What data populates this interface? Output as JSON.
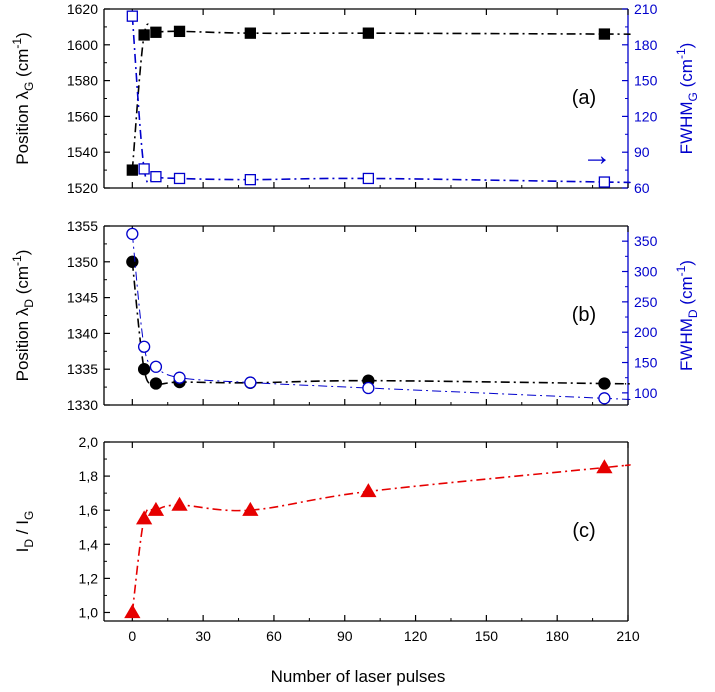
{
  "colors": {
    "black": "#000000",
    "blue": "#0000cc",
    "red": "#e60000"
  },
  "chart_data": [
    {
      "panel": "a",
      "type": "scatter",
      "panel_label": "(a)",
      "xlim": [
        -12,
        210
      ],
      "y_left": {
        "label_main": "Position λ",
        "label_sub": "G",
        "label_unit": " (cm",
        "label_sup": "-1",
        "label_close": ")",
        "lim": [
          1520,
          1620
        ],
        "ticks": [
          "1520",
          "1540",
          "1560",
          "1580",
          "1600",
          "1620"
        ]
      },
      "y_right": {
        "label_main": "FWHM",
        "label_sub": "G",
        "label_unit": " (cm",
        "label_sup": "-1",
        "label_close": ")",
        "lim": [
          60,
          210
        ],
        "ticks": [
          "60",
          "90",
          "120",
          "150",
          "180",
          "210"
        ]
      },
      "annotation": "→",
      "series": [
        {
          "axis": "left",
          "color": "#000000",
          "marker": "filled-square",
          "line": "dash-dot",
          "points": [
            [
              0,
              1530
            ],
            [
              5,
              1605.5
            ],
            [
              10,
              1607
            ],
            [
              20,
              1607.5
            ],
            [
              50,
              1606.5
            ],
            [
              100,
              1606.5
            ],
            [
              200,
              1606
            ]
          ]
        },
        {
          "axis": "right",
          "color": "#0000cc",
          "marker": "open-square",
          "line": "dash-dot",
          "points": [
            [
              0,
              204
            ],
            [
              5,
              76
            ],
            [
              10,
              69.5
            ],
            [
              20,
              68
            ],
            [
              50,
              67
            ],
            [
              100,
              68
            ],
            [
              200,
              65
            ]
          ]
        }
      ]
    },
    {
      "panel": "b",
      "type": "scatter",
      "panel_label": "(b)",
      "xlim": [
        -12,
        210
      ],
      "y_left": {
        "label_main": "Position λ",
        "label_sub": "D",
        "label_unit": " (cm",
        "label_sup": "-1",
        "label_close": ")",
        "lim": [
          1330,
          1355
        ],
        "ticks": [
          "1330",
          "1335",
          "1340",
          "1345",
          "1350",
          "1355"
        ]
      },
      "y_right": {
        "label_main": "FWHM",
        "label_sub": "D",
        "label_unit": " (cm",
        "label_sup": "-1",
        "label_close": ")",
        "lim": [
          80,
          375
        ],
        "ticks": [
          "100",
          "150",
          "200",
          "250",
          "300",
          "350"
        ]
      },
      "series": [
        {
          "axis": "left",
          "color": "#000000",
          "marker": "filled-circle",
          "line": "dash-dot",
          "points": [
            [
              0,
              1350
            ],
            [
              5,
              1335
            ],
            [
              10,
              1333
            ],
            [
              20,
              1333.2
            ],
            [
              50,
              1333.1
            ],
            [
              100,
              1333.4
            ],
            [
              200,
              1333
            ]
          ]
        },
        {
          "axis": "right",
          "color": "#0000cc",
          "marker": "open-circle",
          "line": "dash-dot-thin",
          "points": [
            [
              0,
              362
            ],
            [
              5,
              176
            ],
            [
              10,
              143
            ],
            [
              20,
              125
            ],
            [
              50,
              117
            ],
            [
              100,
              108
            ],
            [
              200,
              91
            ]
          ]
        }
      ]
    },
    {
      "panel": "c",
      "type": "scatter",
      "panel_label": "(c)",
      "xlim": [
        -12,
        210
      ],
      "y_left": {
        "label_main": "I",
        "label_sub": "D",
        "label_mid": " / I",
        "label_sub2": "G",
        "lim": [
          0.95,
          2.0
        ],
        "ticks": [
          "1,0",
          "1,2",
          "1,4",
          "1,6",
          "1,8",
          "2,0"
        ]
      },
      "x_axis": {
        "label": "Number of laser pulses",
        "ticks": [
          "0",
          "30",
          "60",
          "90",
          "120",
          "150",
          "180",
          "210"
        ]
      },
      "series": [
        {
          "axis": "left",
          "color": "#e60000",
          "marker": "filled-triangle",
          "line": "dash-dot",
          "points": [
            [
              0,
              1.0
            ],
            [
              5,
              1.55
            ],
            [
              10,
              1.6
            ],
            [
              20,
              1.63
            ],
            [
              50,
              1.6
            ],
            [
              100,
              1.71
            ],
            [
              200,
              1.85
            ]
          ]
        }
      ]
    }
  ]
}
